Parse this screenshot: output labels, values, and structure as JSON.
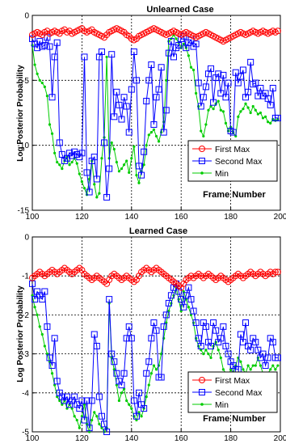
{
  "chart_data": [
    {
      "type": "line",
      "title": "Unlearned Case",
      "xlabel": "Frame Number",
      "ylabel": "Log Posterior Probability",
      "xlim": [
        100,
        200
      ],
      "ylim": [
        -15,
        0
      ],
      "xticks": [
        100,
        120,
        140,
        160,
        180,
        200
      ],
      "yticks": [
        0,
        -5,
        -10,
        -15
      ],
      "xtick_labels": [
        "100",
        "120",
        "140",
        "160",
        "180",
        "200"
      ],
      "ytick_labels": [
        "0",
        "-5",
        "-10",
        "-15"
      ],
      "grid": true,
      "legend_position": "lower-right",
      "x": [
        100,
        101,
        102,
        103,
        104,
        105,
        106,
        107,
        108,
        109,
        110,
        111,
        112,
        113,
        114,
        115,
        116,
        117,
        118,
        119,
        120,
        121,
        122,
        123,
        124,
        125,
        126,
        127,
        128,
        129,
        130,
        131,
        132,
        133,
        134,
        135,
        136,
        137,
        138,
        139,
        140,
        141,
        142,
        143,
        144,
        145,
        146,
        147,
        148,
        149,
        150,
        151,
        152,
        153,
        154,
        155,
        156,
        157,
        158,
        159,
        160,
        161,
        162,
        163,
        164,
        165,
        166,
        167,
        168,
        169,
        170,
        171,
        172,
        173,
        174,
        175,
        176,
        177,
        178,
        179,
        180,
        181,
        182,
        183,
        184,
        185,
        186,
        187,
        188,
        189,
        190,
        191,
        192,
        193,
        194,
        195,
        196,
        197,
        198,
        199
      ],
      "series": [
        {
          "name": "First Max",
          "color": "#ff0000",
          "marker": "circle",
          "values": [
            -1.5,
            -1.4,
            -1.3,
            -1.4,
            -1.5,
            -1.3,
            -1.2,
            -1.4,
            -1.3,
            -1.2,
            -1.3,
            -1.4,
            -1.2,
            -1.1,
            -1.3,
            -1.2,
            -1.4,
            -1.3,
            -1.2,
            -1.1,
            -1.0,
            -1.2,
            -1.3,
            -1.2,
            -1.1,
            -1.3,
            -1.4,
            -1.5,
            -1.6,
            -1.7,
            -1.5,
            -1.3,
            -1.2,
            -1.1,
            -1.0,
            -1.1,
            -1.2,
            -1.3,
            -1.5,
            -1.6,
            -1.8,
            -1.9,
            -1.8,
            -1.6,
            -1.5,
            -1.4,
            -1.3,
            -1.2,
            -1.1,
            -1.0,
            -1.1,
            -1.2,
            -1.3,
            -1.4,
            -1.5,
            -1.4,
            -1.3,
            -1.2,
            -1.3,
            -1.4,
            -1.5,
            -1.4,
            -1.3,
            -1.4,
            -1.5,
            -1.6,
            -1.7,
            -1.6,
            -1.5,
            -1.4,
            -1.3,
            -1.4,
            -1.5,
            -1.6,
            -1.7,
            -1.8,
            -1.9,
            -2.0,
            -1.9,
            -1.8,
            -1.7,
            -1.6,
            -1.5,
            -1.4,
            -1.3,
            -1.4,
            -1.5,
            -1.4,
            -1.3,
            -1.2,
            -1.3,
            -1.4,
            -1.3,
            -1.2,
            -1.3,
            -1.4,
            -1.3,
            -1.2,
            -1.3,
            -1.2
          ]
        },
        {
          "name": "Second Max",
          "color": "#0000ff",
          "marker": "square",
          "values": [
            -1.8,
            -2.2,
            -2.5,
            -2.0,
            -2.4,
            -2.3,
            -1.7,
            -2.4,
            -6.3,
            -3.2,
            -2.1,
            -9.8,
            -10.7,
            -11.2,
            -11.0,
            -10.6,
            -10.8,
            -10.5,
            -10.7,
            -10.9,
            -10.6,
            -3.2,
            -12.1,
            -13.6,
            -11.2,
            -10.9,
            -12.6,
            -3.2,
            -2.8,
            -9.8,
            -14.0,
            -11.8,
            -3.0,
            -7.8,
            -5.9,
            -6.9,
            -8.0,
            -6.3,
            -7.0,
            -9.0,
            -5.7,
            -2.8,
            -5.0,
            -11.6,
            -12.3,
            -10.5,
            -6.6,
            -5.0,
            -3.8,
            -8.4,
            -6.3,
            -5.7,
            -4.0,
            -9.0,
            -7.3,
            -2.9,
            -2.0,
            -3.2,
            -2.5,
            -2.3,
            -1.8,
            -1.6,
            -2.5,
            -2.1,
            -1.9,
            -2.4,
            -2.2,
            -5.2,
            -7.0,
            -6.3,
            -5.5,
            -4.5,
            -4.1,
            -6.7,
            -4.8,
            -4.5,
            -6.0,
            -4.6,
            -6.3,
            -5.2,
            -8.9,
            -9.0,
            -4.4,
            -5.2,
            -4.7,
            -4.2,
            -6.3,
            -5.9,
            -3.6,
            -5.3,
            -5.2,
            -6.2,
            -5.6,
            -6.2,
            -6.0,
            -6.4,
            -6.9,
            -5.6,
            -7.9,
            -7.9
          ]
        },
        {
          "name": "Min",
          "color": "#00cc00",
          "marker": "dot",
          "values": [
            -2.3,
            -3.8,
            -4.5,
            -5.0,
            -5.2,
            -5.5,
            -6.2,
            -8.4,
            -9.1,
            -10.6,
            -11.3,
            -11.5,
            -11.8,
            -11.2,
            -10.9,
            -11.5,
            -11.3,
            -11.0,
            -11.4,
            -12.2,
            -12.8,
            -13.3,
            -13.8,
            -12.6,
            -11.2,
            -13.0,
            -14.0,
            -13.7,
            -11.0,
            -9.4,
            -3.2,
            -11.0,
            -9.8,
            -10.3,
            -11.3,
            -12.0,
            -11.8,
            -11.5,
            -11.2,
            -12.1,
            -11.0,
            -10.1,
            -12.3,
            -12.9,
            -12.0,
            -11.5,
            -10.0,
            -9.2,
            -9.0,
            -8.8,
            -9.3,
            -9.7,
            -9.0,
            -8.2,
            -5.0,
            -2.0,
            -1.8,
            -1.5,
            -1.8,
            -2.1,
            -2.5,
            -2.2,
            -2.5,
            -3.1,
            -4.0,
            -4.2,
            -6.0,
            -7.0,
            -8.9,
            -9.3,
            -8.4,
            -7.3,
            -7.0,
            -7.2,
            -6.8,
            -6.6,
            -7.3,
            -7.4,
            -8.3,
            -8.9,
            -8.6,
            -9.0,
            -9.3,
            -7.8,
            -7.4,
            -7.2,
            -6.8,
            -7.1,
            -7.5,
            -7.0,
            -7.3,
            -7.6,
            -7.5,
            -7.9,
            -7.8,
            -8.2,
            -8.3,
            -8.0,
            -8.1,
            -8.0
          ]
        }
      ]
    },
    {
      "type": "line",
      "title": "Learned Case",
      "xlabel": "Frame Number",
      "ylabel": "Log Posterior Probability",
      "xlim": [
        100,
        200
      ],
      "ylim": [
        -5,
        0
      ],
      "xticks": [
        100,
        120,
        140,
        160,
        180,
        200
      ],
      "yticks": [
        0,
        -1,
        -2,
        -3,
        -4,
        -5
      ],
      "xtick_labels": [
        "100",
        "120",
        "140",
        "160",
        "180",
        "200"
      ],
      "ytick_labels": [
        "0",
        "-1",
        "-2",
        "-3",
        "-4",
        "-5"
      ],
      "grid": true,
      "legend_position": "lower-right",
      "x": [
        100,
        101,
        102,
        103,
        104,
        105,
        106,
        107,
        108,
        109,
        110,
        111,
        112,
        113,
        114,
        115,
        116,
        117,
        118,
        119,
        120,
        121,
        122,
        123,
        124,
        125,
        126,
        127,
        128,
        129,
        130,
        131,
        132,
        133,
        134,
        135,
        136,
        137,
        138,
        139,
        140,
        141,
        142,
        143,
        144,
        145,
        146,
        147,
        148,
        149,
        150,
        151,
        152,
        153,
        154,
        155,
        156,
        157,
        158,
        159,
        160,
        161,
        162,
        163,
        164,
        165,
        166,
        167,
        168,
        169,
        170,
        171,
        172,
        173,
        174,
        175,
        176,
        177,
        178,
        179,
        180,
        181,
        182,
        183,
        184,
        185,
        186,
        187,
        188,
        189,
        190,
        191,
        192,
        193,
        194,
        195,
        196,
        197,
        198,
        199
      ],
      "series": [
        {
          "name": "First Max",
          "color": "#ff0000",
          "marker": "circle",
          "values": [
            -1.05,
            -1.0,
            -0.95,
            -0.9,
            -0.95,
            -1.0,
            -0.95,
            -0.9,
            -0.85,
            -0.9,
            -0.95,
            -0.9,
            -0.85,
            -0.8,
            -0.85,
            -0.9,
            -0.95,
            -0.9,
            -0.85,
            -0.8,
            -0.85,
            -0.95,
            -1.0,
            -1.05,
            -1.1,
            -1.05,
            -1.0,
            -1.05,
            -1.1,
            -1.15,
            -1.2,
            -1.1,
            -1.0,
            -0.95,
            -1.0,
            -1.05,
            -1.1,
            -1.05,
            -1.0,
            -1.05,
            -1.1,
            -1.15,
            -1.1,
            -1.0,
            -0.9,
            -0.85,
            -0.8,
            -0.85,
            -0.9,
            -0.85,
            -0.8,
            -0.85,
            -0.9,
            -0.95,
            -1.0,
            -1.05,
            -1.1,
            -1.15,
            -1.2,
            -1.25,
            -1.3,
            -1.2,
            -1.1,
            -1.05,
            -1.0,
            -1.05,
            -1.0,
            -0.95,
            -1.0,
            -1.05,
            -1.0,
            -0.95,
            -1.0,
            -1.05,
            -1.1,
            -1.05,
            -1.0,
            -1.05,
            -1.1,
            -1.15,
            -1.1,
            -1.05,
            -1.0,
            -0.95,
            -1.0,
            -1.05,
            -1.0,
            -0.95,
            -0.9,
            -0.95,
            -1.0,
            -0.95,
            -0.9,
            -0.95,
            -1.0,
            -0.95,
            -0.9,
            -0.95,
            -0.9,
            -0.9
          ]
        },
        {
          "name": "Second Max",
          "color": "#0000ff",
          "marker": "square",
          "values": [
            -1.2,
            -1.6,
            -1.4,
            -1.5,
            -1.6,
            -1.4,
            -2.3,
            -3.1,
            -3.3,
            -2.6,
            -3.7,
            -4.0,
            -4.1,
            -4.2,
            -4.1,
            -4.3,
            -4.2,
            -4.1,
            -4.3,
            -4.4,
            -4.2,
            -4.7,
            -4.2,
            -4.9,
            -4.2,
            -2.5,
            -2.8,
            -4.1,
            -4.6,
            -4.8,
            -5.0,
            -1.6,
            -3.0,
            -3.2,
            -3.5,
            -3.7,
            -3.8,
            -3.5,
            -2.6,
            -2.3,
            -2.6,
            -4.2,
            -4.6,
            -4.0,
            -4.3,
            -4.4,
            -3.5,
            -3.2,
            -2.6,
            -2.2,
            -2.4,
            -3.6,
            -3.6,
            -2.3,
            -2.0,
            -1.7,
            -1.5,
            -1.3,
            -1.2,
            -1.4,
            -1.6,
            -1.8,
            -1.5,
            -1.3,
            -1.6,
            -1.9,
            -2.2,
            -2.6,
            -2.8,
            -2.2,
            -2.3,
            -2.7,
            -2.8,
            -2.2,
            -2.4,
            -2.7,
            -2.6,
            -2.3,
            -2.8,
            -3.0,
            -3.2,
            -3.3,
            -3.4,
            -3.4,
            -2.5,
            -2.7,
            -2.2,
            -2.8,
            -2.9,
            -2.6,
            -2.7,
            -2.9,
            -3.1,
            -3.0,
            -3.3,
            -3.1,
            -2.6,
            -2.7,
            -3.1,
            -3.1
          ]
        },
        {
          "name": "Min",
          "color": "#00cc00",
          "marker": "dot",
          "values": [
            -1.5,
            -1.8,
            -2.0,
            -2.3,
            -2.5,
            -2.8,
            -3.0,
            -3.2,
            -3.5,
            -3.8,
            -4.1,
            -4.2,
            -4.3,
            -4.2,
            -4.4,
            -4.3,
            -4.4,
            -4.6,
            -4.7,
            -4.9,
            -4.6,
            -4.3,
            -4.8,
            -5.0,
            -4.7,
            -4.5,
            -4.6,
            -4.8,
            -4.9,
            -5.0,
            -4.9,
            -1.7,
            -3.1,
            -3.4,
            -3.8,
            -4.2,
            -4.0,
            -3.9,
            -4.2,
            -4.3,
            -4.4,
            -4.6,
            -4.7,
            -4.5,
            -4.6,
            -4.4,
            -4.1,
            -3.8,
            -3.5,
            -3.3,
            -3.4,
            -3.3,
            -3.0,
            -2.6,
            -2.2,
            -1.9,
            -1.7,
            -1.5,
            -1.3,
            -1.6,
            -1.9,
            -1.4,
            -1.6,
            -1.8,
            -2.0,
            -2.2,
            -2.6,
            -2.8,
            -2.9,
            -3.0,
            -2.9,
            -3.0,
            -3.1,
            -2.8,
            -2.7,
            -2.9,
            -3.1,
            -3.4,
            -3.5,
            -3.6,
            -3.4,
            -3.5,
            -3.3,
            -3.1,
            -3.2,
            -3.4,
            -3.5,
            -3.3,
            -3.4,
            -3.3,
            -3.3,
            -3.1,
            -3.3,
            -3.5,
            -3.6,
            -3.5,
            -3.4,
            -3.3,
            -3.4,
            -3.3
          ]
        }
      ]
    }
  ]
}
